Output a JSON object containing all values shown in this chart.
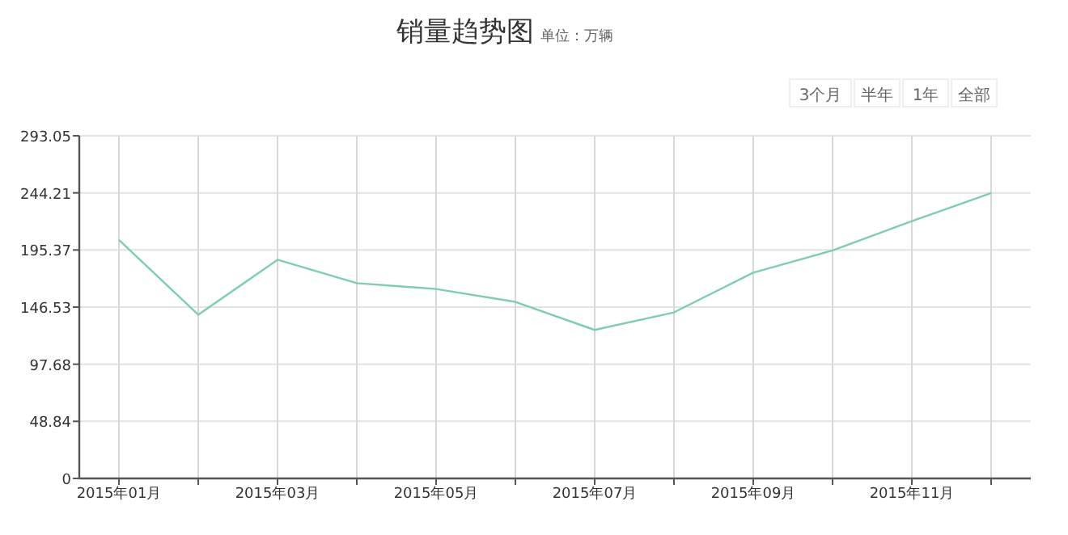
{
  "chart_data": {
    "type": "line",
    "title": "销量趋势图",
    "subtitle": "单位：万辆",
    "annotations": [
      "3个月",
      "半年",
      "1年",
      "全部"
    ],
    "categories": [
      "2015年01月",
      null,
      "2015年03月",
      null,
      "2015年05月",
      null,
      "2015年07月",
      null,
      "2015年09月",
      null,
      "2015年11月",
      null
    ],
    "series": [
      {
        "color": "#7ccfae",
        "values": [
          204,
          140,
          187,
          167,
          162,
          151,
          127,
          142,
          176,
          195,
          220,
          244
        ]
      }
    ],
    "ylim": [
      0,
      293.05
    ],
    "yticks": [
      0,
      48.84,
      97.68,
      146.53,
      195.37,
      244.21,
      293.05
    ],
    "grid": true,
    "marker": "none",
    "line_style": "solid"
  }
}
